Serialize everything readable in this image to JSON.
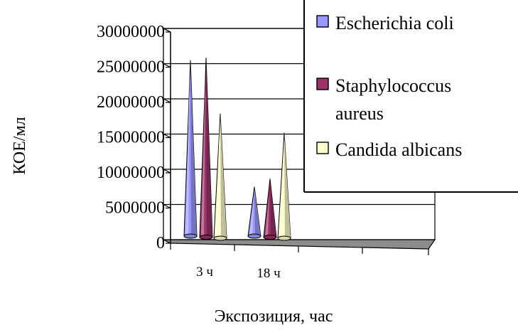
{
  "chart_data": {
    "type": "bar",
    "style": "3d-cone",
    "xlabel": "Экспозиция, час",
    "ylabel": "КОЕ/мл",
    "categories": [
      "3 ч",
      "18 ч"
    ],
    "ylim": [
      0,
      30000000
    ],
    "yticks": [
      "0",
      "5000000",
      "10000000",
      "15000000",
      "20000000",
      "25000000",
      "30000000"
    ],
    "grid": true,
    "legend_position": "top-right",
    "series": [
      {
        "name": "Escherichia coli",
        "color": "#9999ff",
        "values": [
          25000000,
          7000000
        ]
      },
      {
        "name": "Staphylococcus aureus",
        "color": "#993366",
        "values": [
          25500000,
          8300000
        ]
      },
      {
        "name": "Candida albicans",
        "color": "#ffffcc",
        "values": [
          17700000,
          15000000
        ]
      }
    ]
  }
}
